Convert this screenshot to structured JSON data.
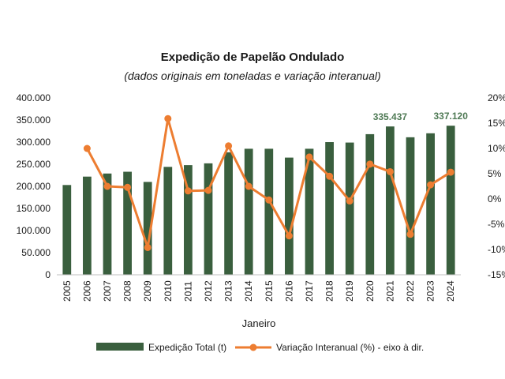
{
  "chart_data": {
    "type": "bar+line",
    "title": "Expedição de Papelão Ondulado",
    "subtitle": "(dados originais em toneladas e variação interanual)",
    "xlabel": "Janeiro",
    "categories": [
      "2005",
      "2006",
      "2007",
      "2008",
      "2009",
      "2010",
      "2011",
      "2012",
      "2013",
      "2014",
      "2015",
      "2016",
      "2017",
      "2018",
      "2019",
      "2020",
      "2021",
      "2022",
      "2023",
      "2024"
    ],
    "bar_series": {
      "name": "Expedição Total (t)",
      "axis": "left",
      "color": "#3a5f3e",
      "values": [
        203000,
        222000,
        229000,
        233000,
        210000,
        244000,
        248000,
        252000,
        277000,
        285000,
        285000,
        265000,
        285000,
        300000,
        299000,
        318000,
        335437,
        311000,
        320000,
        337120
      ]
    },
    "line_series": {
      "name": "Variação Interanual (%) - eixo à dir.",
      "axis": "right",
      "color": "#ed7d31",
      "x_start_index": 1,
      "values": [
        10.0,
        2.5,
        2.3,
        -9.6,
        15.9,
        1.6,
        1.7,
        10.5,
        2.5,
        -0.2,
        -7.3,
        8.3,
        4.5,
        -0.4,
        6.9,
        5.4,
        -7.0,
        2.8,
        5.3
      ]
    },
    "data_labels": [
      {
        "category": "2021",
        "text": "335.437"
      },
      {
        "category": "2024",
        "text": "337.120"
      }
    ],
    "data_label_color": "#4f7a55",
    "left_axis": {
      "min": 0,
      "max": 400000,
      "step": 50000,
      "tick_labels": [
        "0",
        "50.000",
        "100.000",
        "150.000",
        "200.000",
        "250.000",
        "300.000",
        "350.000",
        "400.000"
      ]
    },
    "right_axis": {
      "min": -15,
      "max": 20,
      "step": 5,
      "tick_labels": [
        "-15%",
        "-10%",
        "-5%",
        "0%",
        "5%",
        "10%",
        "15%",
        "20%"
      ]
    },
    "grid": false,
    "legend_position": "bottom"
  }
}
